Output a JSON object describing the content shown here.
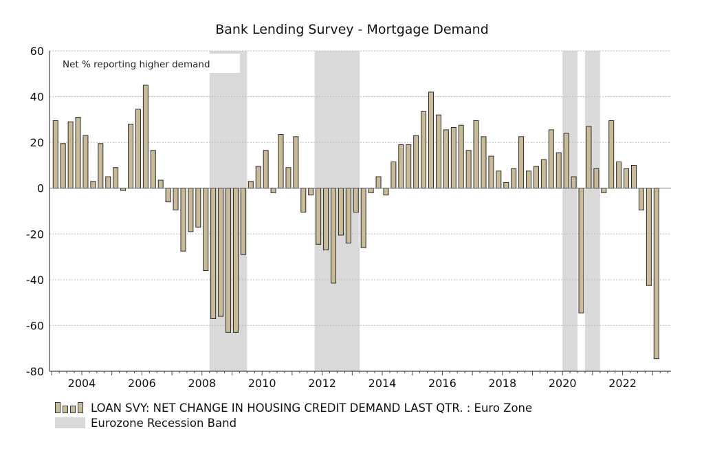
{
  "chart_data": {
    "type": "bar",
    "title": "Bank Lending Survey - Mortgage Demand",
    "annotation": "Net % reporting higher demand",
    "xlabel": "",
    "ylabel": "",
    "ylim": [
      -80,
      60
    ],
    "yticks": [
      "60",
      "40",
      "20",
      "0",
      "-20",
      "-40",
      "-60",
      "-80"
    ],
    "ytick_values": [
      60,
      40,
      20,
      0,
      -20,
      -40,
      -60,
      -80
    ],
    "xticks": [
      "2004",
      "2006",
      "2008",
      "2010",
      "2012",
      "2014",
      "2016",
      "2018",
      "2020",
      "2022"
    ],
    "xtick_values": [
      2004,
      2006,
      2008,
      2010,
      2012,
      2014,
      2016,
      2018,
      2020,
      2022
    ],
    "xlim": [
      2003,
      2023.65
    ],
    "start_quarter": "2003Q1",
    "frequency": "quarterly",
    "grid": true,
    "series": [
      {
        "name": "LOAN SVY: NET CHANGE IN HOUSING CREDIT DEMAND LAST QTR. : Euro Zone",
        "color": "#c8bb95",
        "values": [
          29.5,
          19.5,
          29,
          31,
          23,
          3,
          19.5,
          5,
          9,
          -1,
          28,
          34.5,
          45,
          16.5,
          3.5,
          -6,
          -9.5,
          -27.5,
          -19,
          -17,
          -36,
          -57,
          -56,
          -63,
          -63,
          -29,
          3,
          9.5,
          16.5,
          -2,
          23.5,
          9,
          22.5,
          -10.5,
          -3,
          -24.5,
          -27,
          -41.5,
          -20.5,
          -24,
          -10.5,
          -26,
          -2,
          5,
          -3,
          11.5,
          19,
          19,
          23,
          33.5,
          42,
          32,
          25.5,
          26.5,
          27.5,
          16.5,
          29.5,
          22.5,
          14,
          7.5,
          2.5,
          8.5,
          22.5,
          7.5,
          9.5,
          12.5,
          25.5,
          15.5,
          24,
          5,
          -54.5,
          27,
          8.5,
          -2,
          29.5,
          11.5,
          8.5,
          10,
          -9.5,
          -42.5,
          -74.5
        ]
      }
    ],
    "bands": {
      "name": "Eurozone Recession Band",
      "color": "#d9d9d9",
      "ranges": [
        [
          2008.25,
          2009.5
        ],
        [
          2011.75,
          2013.25
        ],
        [
          2020.0,
          2020.5
        ],
        [
          2020.75,
          2021.25
        ]
      ]
    },
    "legend": {
      "placement": "bottom-left",
      "entries": [
        "LOAN SVY: NET CHANGE IN HOUSING CREDIT DEMAND LAST QTR. : Euro Zone",
        "Eurozone Recession Band"
      ]
    }
  }
}
